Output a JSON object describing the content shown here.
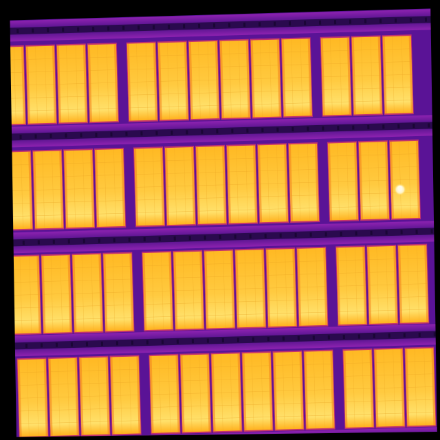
{
  "image": {
    "kind": "thermal-aerial-photo",
    "palette": "ironbow",
    "colors": {
      "background": "#000000",
      "mount_deep": "#2a0a4e",
      "mount_mid": "#5a1396",
      "mount_light": "#8d22b0",
      "panel_rim": "#c2336e",
      "panel_hot_top": "#ffcd45",
      "panel_hot_bottom": "#ffb11e",
      "panel_edge": "#f2821e",
      "hotspot": "#fffbe6"
    }
  },
  "array": {
    "row_count": 4,
    "panels_per_row": 13,
    "string_groups": [
      4,
      6,
      3
    ],
    "hotspot_count": 1
  }
}
